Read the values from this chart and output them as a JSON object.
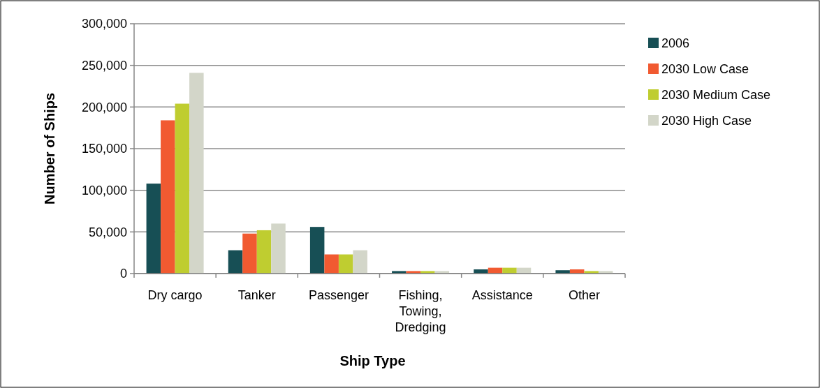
{
  "chart_data": {
    "type": "bar",
    "xlabel": "Ship Type",
    "ylabel": "Number of Ships",
    "categories": [
      "Dry cargo",
      "Tanker",
      "Passenger",
      "Fishing, Towing, Dredging",
      "Assistance",
      "Other"
    ],
    "series": [
      {
        "name": "2006",
        "color": "#174f55",
        "values": [
          108000,
          28000,
          56000,
          3000,
          5000,
          4000
        ]
      },
      {
        "name": "2030 Low Case",
        "color": "#f15a31",
        "values": [
          184000,
          48000,
          23000,
          3000,
          7000,
          5000
        ]
      },
      {
        "name": "2030 Medium Case",
        "color": "#bfcd30",
        "values": [
          204000,
          52000,
          23000,
          3000,
          7000,
          3000
        ]
      },
      {
        "name": "2030 High Case",
        "color": "#d3d6c9",
        "values": [
          241000,
          60000,
          28000,
          3000,
          7000,
          3000
        ]
      }
    ],
    "ylim": [
      0,
      300000
    ],
    "yticks": [
      {
        "value": 0,
        "label": "0"
      },
      {
        "value": 50000,
        "label": "50,000"
      },
      {
        "value": 100000,
        "label": "100,000"
      },
      {
        "value": 150000,
        "label": "150,000"
      },
      {
        "value": 200000,
        "label": "200,000"
      },
      {
        "value": 250000,
        "label": "250,000"
      },
      {
        "value": 300000,
        "label": "300,000"
      }
    ],
    "grid": "y",
    "legend": "right"
  }
}
